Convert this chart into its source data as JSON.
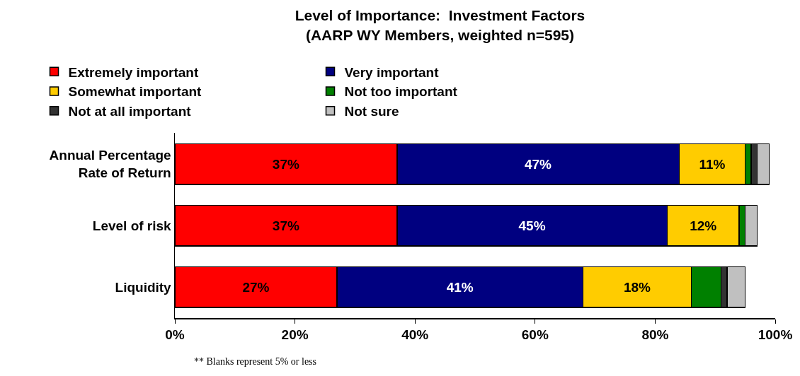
{
  "chart_data": {
    "type": "bar",
    "orientation": "horizontal",
    "stacked": true,
    "title": "Level of Importance:  Investment Factors",
    "subtitle": "(AARP WY Members, weighted n=595)",
    "categories": [
      "Annual Percentage Rate of Return",
      "Level of risk",
      "Liquidity"
    ],
    "series": [
      {
        "name": "Extremely important",
        "color": "#ff0000",
        "values": [
          37,
          37,
          27
        ],
        "value_labels": [
          "37%",
          "37%",
          "27%"
        ]
      },
      {
        "name": "Very important",
        "color": "#000080",
        "values": [
          47,
          45,
          41
        ],
        "value_labels": [
          "47%",
          "45%",
          "41%"
        ]
      },
      {
        "name": "Somewhat important",
        "color": "#ffcc00",
        "values": [
          11,
          12,
          18
        ],
        "value_labels": [
          "11%",
          "12%",
          "18%"
        ]
      },
      {
        "name": "Not too important",
        "color": "#008000",
        "values": [
          1,
          1,
          5
        ]
      },
      {
        "name": "Not at all important",
        "color": "#333333",
        "values": [
          1,
          0,
          1
        ]
      },
      {
        "name": "Not sure",
        "color": "#c0c0c0",
        "values": [
          2,
          2,
          3
        ]
      }
    ],
    "xlim": [
      0,
      100
    ],
    "xticks": [
      {
        "value": 0,
        "label": "0%"
      },
      {
        "value": 20,
        "label": "20%"
      },
      {
        "value": 40,
        "label": "40%"
      },
      {
        "value": 60,
        "label": "60%"
      },
      {
        "value": 80,
        "label": "80%"
      },
      {
        "value": 100,
        "label": "100%"
      }
    ],
    "grid": false,
    "legend": "top",
    "annotations": [
      "** Blanks represent 5% or less"
    ]
  }
}
